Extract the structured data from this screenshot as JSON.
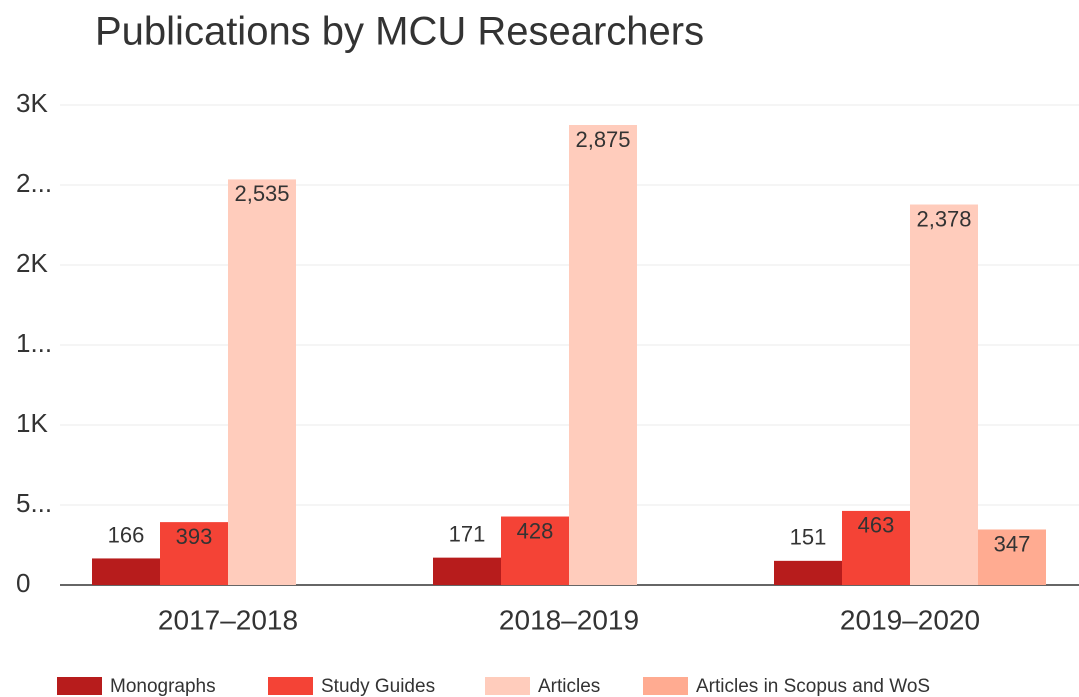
{
  "chart_data": {
    "type": "bar",
    "title": "Publications by MCU Researchers",
    "categories": [
      "2017–2018",
      "2018–2019",
      "2019–2020"
    ],
    "series": [
      {
        "name": "Monographs",
        "color": "#b71c1c",
        "values": [
          166,
          171,
          151
        ]
      },
      {
        "name": "Study Guides",
        "color": "#f44336",
        "values": [
          393,
          428,
          463
        ]
      },
      {
        "name": "Articles",
        "color": "#ffccbc",
        "values": [
          2535,
          2875,
          2378
        ],
        "value_labels": [
          "2,535",
          "2,875",
          "2,378"
        ]
      },
      {
        "name": "Articles in Scopus and WoS",
        "color": "#ffab91",
        "values": [
          null,
          null,
          347
        ]
      }
    ],
    "ylim": [
      0,
      3000
    ],
    "yticks": [
      0,
      {
        "value": 500,
        "label": "5..."
      },
      {
        "value": 1000,
        "label": "1K"
      },
      {
        "value": 1500,
        "label": "1..."
      },
      {
        "value": 2000,
        "label": "2K"
      },
      {
        "value": 2500,
        "label": "2..."
      },
      {
        "value": 3000,
        "label": "3K"
      }
    ],
    "grid": true,
    "legend": "bottom"
  }
}
